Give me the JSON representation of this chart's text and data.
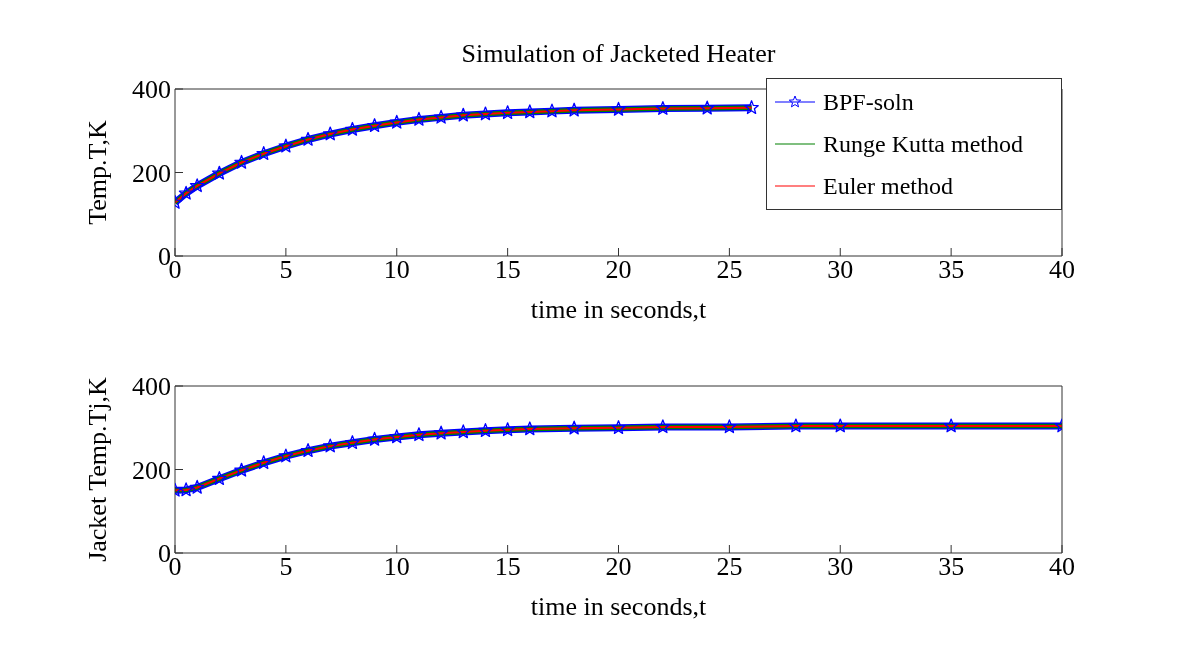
{
  "chart_data": [
    {
      "type": "line",
      "title": "Simulation of Jacketed Heater",
      "xlabel": "time in seconds,t",
      "ylabel": "Temp.T,K",
      "x": [
        0,
        0.5,
        1,
        2,
        3,
        4,
        5,
        6,
        7,
        8,
        9,
        10,
        11,
        12,
        13,
        14,
        15,
        16,
        17,
        18,
        20,
        22,
        24,
        26
      ],
      "series": [
        {
          "name": "BPF-soln",
          "color": "#0000ff",
          "marker": "star",
          "values": [
            128,
            150,
            168,
            198,
            224,
            245,
            263,
            279,
            292,
            303,
            312,
            320,
            327,
            332,
            337,
            340,
            343,
            345,
            347,
            349,
            351,
            353,
            354,
            355
          ]
        },
        {
          "name": "Runge Kutta method",
          "color": "#008000",
          "marker": "none",
          "values": [
            128,
            150,
            168,
            198,
            224,
            245,
            263,
            279,
            292,
            303,
            312,
            320,
            327,
            332,
            337,
            340,
            343,
            345,
            347,
            349,
            351,
            353,
            354,
            355
          ]
        },
        {
          "name": "Euler method",
          "color": "#ff0000",
          "marker": "none",
          "values": [
            128,
            150,
            168,
            198,
            224,
            245,
            263,
            279,
            292,
            303,
            312,
            320,
            327,
            332,
            337,
            340,
            343,
            345,
            347,
            349,
            351,
            353,
            354,
            355
          ]
        }
      ],
      "xlim": [
        0,
        40
      ],
      "xticks": [
        0,
        5,
        10,
        15,
        20,
        25,
        30,
        35,
        40
      ],
      "ylim": [
        0,
        400
      ],
      "yticks": [
        0,
        200,
        400
      ],
      "legend": "top right",
      "line_style": "solid"
    },
    {
      "type": "line",
      "xlabel": "time in seconds,t",
      "ylabel": "Jacket Temp.Tj,K",
      "x": [
        0,
        0.5,
        1,
        2,
        3,
        4,
        5,
        6,
        7,
        8,
        9,
        10,
        11,
        12,
        13,
        14,
        15,
        16,
        18,
        20,
        22,
        25,
        28,
        30,
        35,
        40
      ],
      "series": [
        {
          "color": "#0000ff",
          "marker": "star",
          "values": [
            150,
            151,
            157,
            178,
            198,
            216,
            232,
            245,
            256,
            264,
            272,
            278,
            283,
            287,
            290,
            293,
            295,
            297,
            299,
            300,
            302,
            302,
            304,
            304,
            304,
            304
          ]
        },
        {
          "color": "#008000",
          "marker": "none",
          "values": [
            150,
            151,
            157,
            178,
            198,
            216,
            232,
            245,
            256,
            264,
            272,
            278,
            283,
            287,
            290,
            293,
            295,
            297,
            299,
            300,
            302,
            302,
            304,
            304,
            304,
            304
          ]
        },
        {
          "color": "#ff0000",
          "marker": "none",
          "values": [
            150,
            151,
            157,
            178,
            198,
            216,
            232,
            245,
            256,
            264,
            272,
            278,
            283,
            287,
            290,
            293,
            295,
            297,
            299,
            300,
            302,
            302,
            304,
            304,
            304,
            304
          ]
        }
      ],
      "xlim": [
        0,
        40
      ],
      "xticks": [
        0,
        5,
        10,
        15,
        20,
        25,
        30,
        35,
        40
      ],
      "ylim": [
        0,
        400
      ],
      "yticks": [
        0,
        200,
        400
      ],
      "line_style": "solid"
    }
  ]
}
